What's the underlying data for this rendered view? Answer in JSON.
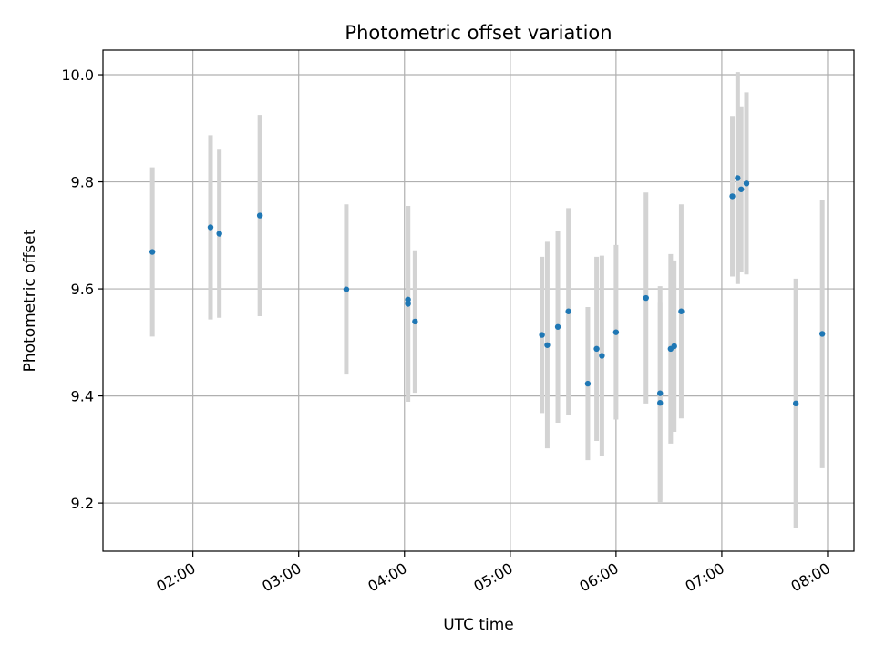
{
  "chart_data": {
    "type": "scatter",
    "title": "Photometric offset variation",
    "xlabel": "UTC time",
    "ylabel": "Photometric offset",
    "xlim": [
      "01:09",
      "08:15"
    ],
    "ylim": [
      9.11,
      10.046
    ],
    "grid": true,
    "x_ticks": [
      "02:00",
      "03:00",
      "04:00",
      "05:00",
      "06:00",
      "07:00",
      "08:00"
    ],
    "y_ticks": [
      "9.2",
      "9.4",
      "9.6",
      "9.8",
      "10.0"
    ],
    "colors": {
      "points": "#1f77b4",
      "errorbars": "#d3d3d3",
      "grid": "#b0b0b0"
    },
    "series": [
      {
        "points": [
          {
            "x": "01:37",
            "y": 9.669,
            "err": 0.158
          },
          {
            "x": "02:10",
            "y": 9.715,
            "err": 0.172
          },
          {
            "x": "02:15",
            "y": 9.703,
            "err": 0.157
          },
          {
            "x": "02:38",
            "y": 9.737,
            "err": 0.188
          },
          {
            "x": "03:27",
            "y": 9.599,
            "err": 0.159
          },
          {
            "x": "04:02",
            "y": 9.58,
            "err": 0.175
          },
          {
            "x": "04:02",
            "y": 9.572,
            "err": 0.183
          },
          {
            "x": "04:06",
            "y": 9.539,
            "err": 0.133
          },
          {
            "x": "05:18",
            "y": 9.514,
            "err": 0.146
          },
          {
            "x": "05:21",
            "y": 9.495,
            "err": 0.193
          },
          {
            "x": "05:27",
            "y": 9.529,
            "err": 0.179
          },
          {
            "x": "05:33",
            "y": 9.558,
            "err": 0.193
          },
          {
            "x": "05:44",
            "y": 9.423,
            "err": 0.143
          },
          {
            "x": "05:49",
            "y": 9.488,
            "err": 0.172
          },
          {
            "x": "05:52",
            "y": 9.475,
            "err": 0.187
          },
          {
            "x": "06:00",
            "y": 9.519,
            "err": 0.163
          },
          {
            "x": "06:17",
            "y": 9.583,
            "err": 0.197
          },
          {
            "x": "06:25",
            "y": 9.405,
            "err": 0.2
          },
          {
            "x": "06:25",
            "y": 9.387,
            "err": 0.187
          },
          {
            "x": "06:31",
            "y": 9.488,
            "err": 0.177
          },
          {
            "x": "06:33",
            "y": 9.493,
            "err": 0.16
          },
          {
            "x": "06:37",
            "y": 9.558,
            "err": 0.2
          },
          {
            "x": "07:06",
            "y": 9.773,
            "err": 0.15
          },
          {
            "x": "07:09",
            "y": 9.807,
            "err": 0.198
          },
          {
            "x": "07:11",
            "y": 9.786,
            "err": 0.155
          },
          {
            "x": "07:14",
            "y": 9.797,
            "err": 0.17
          },
          {
            "x": "07:42",
            "y": 9.386,
            "err": 0.233
          },
          {
            "x": "07:57",
            "y": 9.516,
            "err": 0.251
          }
        ]
      }
    ]
  }
}
